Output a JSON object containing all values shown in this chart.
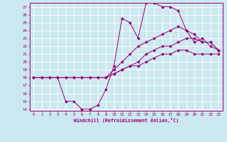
{
  "xlabel": "Windchill (Refroidissement éolien,°C)",
  "bg_color": "#cce8f0",
  "line_color": "#990077",
  "grid_color": "#ffffff",
  "xlim": [
    -0.5,
    23.5
  ],
  "ylim": [
    13.8,
    27.5
  ],
  "xticks": [
    0,
    1,
    2,
    3,
    4,
    5,
    6,
    7,
    8,
    9,
    10,
    11,
    12,
    13,
    14,
    15,
    16,
    17,
    18,
    19,
    20,
    21,
    22,
    23
  ],
  "yticks": [
    14,
    15,
    16,
    17,
    18,
    19,
    20,
    21,
    22,
    23,
    24,
    25,
    26,
    27
  ],
  "series": [
    {
      "x": [
        0,
        1,
        2,
        3,
        4,
        5,
        6,
        7,
        8,
        9,
        10,
        11,
        12,
        13,
        14,
        15,
        16,
        17,
        18,
        19,
        20,
        21,
        22,
        23
      ],
      "y": [
        18,
        18,
        18,
        18,
        15,
        15,
        14,
        14,
        14.5,
        16.5,
        19.5,
        25.5,
        25,
        23,
        27.5,
        27.5,
        27,
        27,
        26.5,
        24,
        22.5,
        23,
        22,
        21.5
      ]
    },
    {
      "x": [
        0,
        1,
        2,
        3,
        4,
        5,
        6,
        7,
        8,
        9,
        10,
        11,
        12,
        13,
        14,
        15,
        16,
        17,
        18,
        19,
        20,
        21,
        22,
        23
      ],
      "y": [
        18,
        18,
        18,
        18,
        18,
        18,
        18,
        18,
        18,
        18,
        19,
        20,
        21,
        22,
        22.5,
        23,
        23.5,
        24,
        24.5,
        24,
        23.5,
        22.5,
        22.5,
        21.5
      ]
    },
    {
      "x": [
        0,
        1,
        2,
        3,
        4,
        5,
        6,
        7,
        8,
        9,
        10,
        11,
        12,
        13,
        14,
        15,
        16,
        17,
        18,
        19,
        20,
        21,
        22,
        23
      ],
      "y": [
        18,
        18,
        18,
        18,
        18,
        18,
        18,
        18,
        18,
        18,
        18.5,
        19,
        19.5,
        19.5,
        20,
        20.5,
        21,
        21,
        21.5,
        21.5,
        21,
        21,
        21,
        21
      ]
    },
    {
      "x": [
        0,
        1,
        2,
        3,
        4,
        5,
        6,
        7,
        8,
        9,
        10,
        11,
        12,
        13,
        14,
        15,
        16,
        17,
        18,
        19,
        20,
        21,
        22,
        23
      ],
      "y": [
        18,
        18,
        18,
        18,
        18,
        18,
        18,
        18,
        18,
        18,
        18.5,
        19,
        19.5,
        20,
        21,
        21.5,
        22,
        22,
        22.5,
        23,
        23,
        22.5,
        22.5,
        21.5
      ]
    }
  ]
}
